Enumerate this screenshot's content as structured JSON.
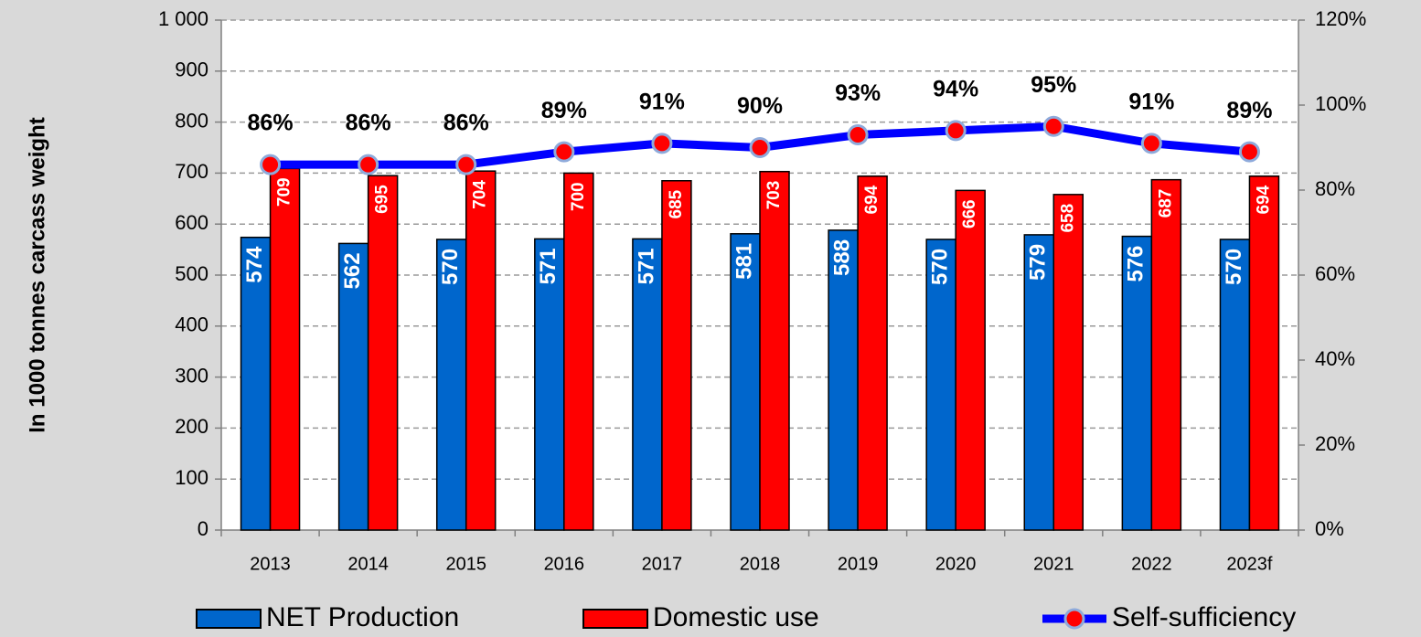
{
  "chart_data": {
    "type": "bar_line",
    "y_label": "In 1000 tonnes  carcass weight",
    "categories": [
      "2013",
      "2014",
      "2015",
      "2016",
      "2017",
      "2018",
      "2019",
      "2020",
      "2021",
      "2022",
      "2023f"
    ],
    "series": [
      {
        "name": "NET Production",
        "color": "#0066cc",
        "type": "bar",
        "values": [
          574,
          562,
          570,
          571,
          571,
          581,
          588,
          570,
          579,
          576,
          570
        ]
      },
      {
        "name": "Domestic use",
        "color": "#ff0000",
        "type": "bar",
        "values": [
          709,
          695,
          704,
          700,
          685,
          703,
          694,
          666,
          658,
          687,
          694
        ]
      },
      {
        "name": "Self-sufficiency",
        "color": "#0000ff",
        "marker_color": "#ff0000",
        "type": "line",
        "axis": "y2",
        "values": [
          86,
          86,
          86,
          89,
          91,
          90,
          93,
          94,
          95,
          91,
          89
        ],
        "value_labels": [
          "86%",
          "86%",
          "86%",
          "89%",
          "91%",
          "90%",
          "93%",
          "94%",
          "95%",
          "91%",
          "89%"
        ]
      }
    ],
    "ylim": [
      0,
      1000
    ],
    "yticks": [
      0,
      100,
      200,
      300,
      400,
      500,
      600,
      700,
      800,
      900,
      {
        "value": 1000,
        "label": "1 000"
      }
    ],
    "y2lim": [
      0,
      120
    ],
    "y2ticks": [
      {
        "value": 0,
        "label": "0%"
      },
      {
        "value": 20,
        "label": "20%"
      },
      {
        "value": 40,
        "label": "40%"
      },
      {
        "value": 60,
        "label": "60%"
      },
      {
        "value": 80,
        "label": "80%"
      },
      {
        "value": 100,
        "label": "100%"
      },
      {
        "value": 120,
        "label": "120%"
      }
    ],
    "grid": true,
    "legend": "bottom"
  }
}
